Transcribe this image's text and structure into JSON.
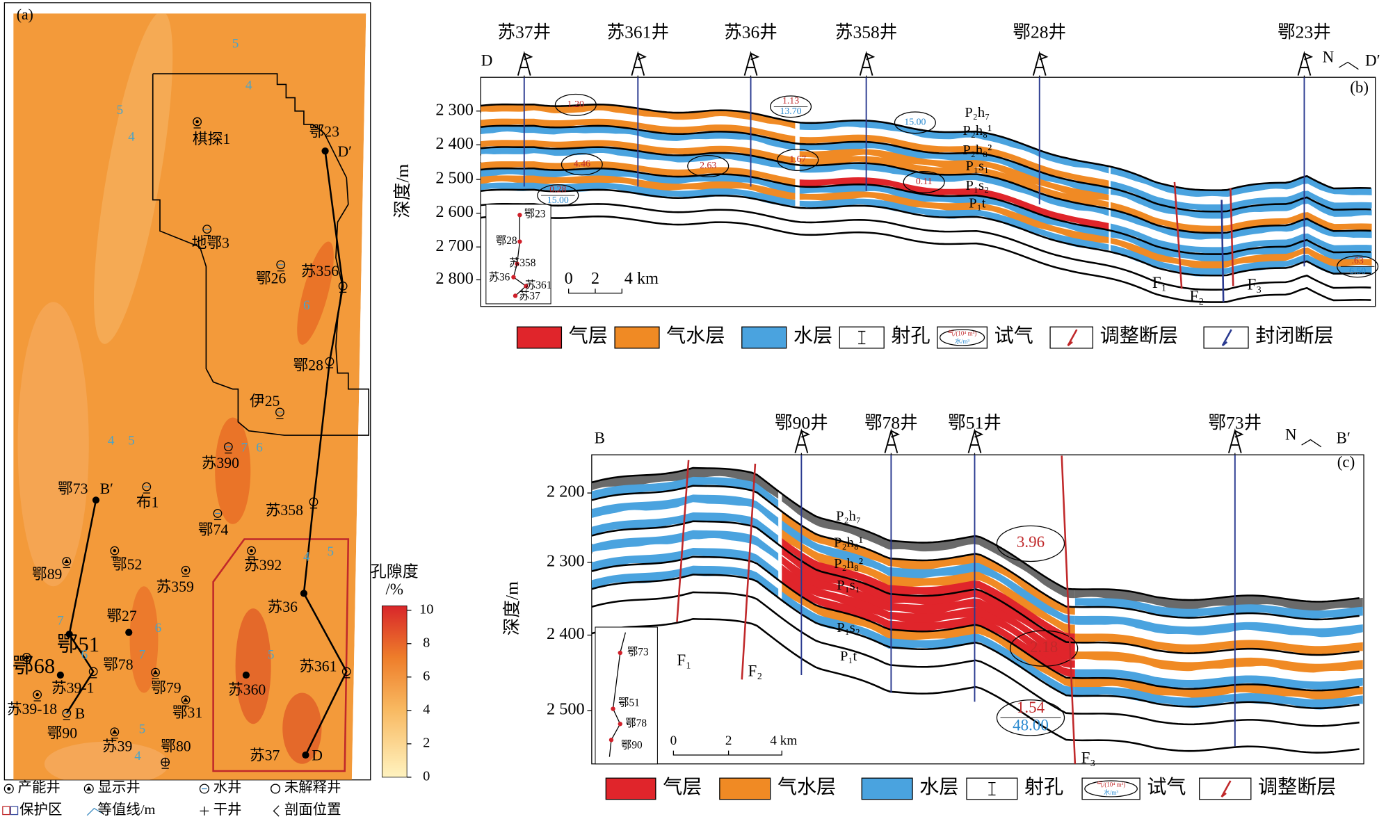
{
  "map": {
    "label": "(a)",
    "wells": [
      "棋探1",
      "鄂23",
      "D′",
      "地鄂3",
      "鄂26",
      "苏356",
      "鄂28",
      "伊25",
      "苏390",
      "布1",
      "鄂73",
      "B′",
      "苏358",
      "鄂74",
      "鄂52",
      "鄂89",
      "苏392",
      "苏359",
      "苏36",
      "鄂27",
      "鄂51",
      "鄂78",
      "鄂68",
      "苏361",
      "苏360",
      "苏39-1",
      "鄂79",
      "苏39-18",
      "B",
      "鄂31",
      "鄂90",
      "苏39",
      "鄂80",
      "苏37",
      "D"
    ],
    "contour_labels": [
      "5",
      "4",
      "5",
      "4",
      "6",
      "4",
      "5",
      "7",
      "6",
      "5",
      "4",
      "7",
      "6",
      "7",
      "6",
      "5",
      "4",
      "5"
    ],
    "colorbar": {
      "title": "孔隙度",
      "unit": "/%",
      "ticks": [
        10,
        8,
        6,
        4,
        2,
        0
      ]
    },
    "legend": [
      "产能井",
      "显示井",
      "水井",
      "未解释井",
      "保护区",
      "等值线/m",
      "干井",
      "剖面位置"
    ]
  },
  "section_b": {
    "label": "(b)",
    "left": "D",
    "north": "N",
    "right": "D′",
    "wells": [
      "苏37井",
      "苏361井",
      "苏36井",
      "苏358井",
      "鄂28井",
      "鄂23井"
    ],
    "axis_title": "深度/m",
    "depth_ticks": [
      "2 300",
      "2 400",
      "2 500",
      "2 600",
      "2 700",
      "2 800"
    ],
    "layers": [
      "P₂h₇",
      "P₂h₈¹",
      "P₂h₈²",
      "P₁s₁",
      "P₁s₂",
      "P₁t"
    ],
    "tests": [
      {
        "gas": "1.20"
      },
      {
        "gas": "1.13",
        "water": "13.70"
      },
      {
        "water": "15.00"
      },
      {
        "gas": "4.46"
      },
      {
        "gas": "2.63"
      },
      {
        "gas": "1.67"
      },
      {
        "gas": "0.11"
      },
      {
        "gas": "0.28",
        "water": "15.00"
      },
      {
        "gas": ".63",
        "water": "6.50"
      }
    ],
    "faults": [
      "F₁",
      "F₂",
      "F₃"
    ],
    "scale": [
      "0",
      "2",
      "4 km"
    ],
    "inset": [
      "鄂23",
      "鄂28",
      "苏358",
      "苏36",
      "苏361",
      "苏37"
    ],
    "legend": [
      "气层",
      "气水层",
      "水层",
      "射孔",
      "试气",
      "调整断层",
      "封闭断层"
    ],
    "test_key": [
      "气/(10⁴ m³)",
      "水/m³"
    ]
  },
  "section_c": {
    "label": "(c)",
    "left": "B",
    "north": "N",
    "right": "B′",
    "wells": [
      "鄂90井",
      "鄂78井",
      "鄂51井",
      "鄂73井"
    ],
    "axis_title": "深度/m",
    "depth_ticks": [
      "2 200",
      "2 300",
      "2 400",
      "2 500"
    ],
    "layers": [
      "P₂h₇",
      "P₂h₈¹",
      "P₂h₈²",
      "P₁s₁",
      "P₁s₂",
      "P₁t"
    ],
    "tests": [
      {
        "gas": "3.96"
      },
      {
        "gas": "2.18"
      },
      {
        "gas": "1.54",
        "water": "48.00"
      }
    ],
    "faults": [
      "F₁",
      "F₂",
      "F₃"
    ],
    "scale": [
      "0",
      "2",
      "4 km"
    ],
    "inset": [
      "鄂73",
      "鄂51",
      "鄂78",
      "鄂90"
    ],
    "legend": [
      "气层",
      "气水层",
      "水层",
      "射孔",
      "试气",
      "调整断层"
    ],
    "test_key": [
      "气/(10⁴ m³)",
      "水/m³"
    ]
  }
}
